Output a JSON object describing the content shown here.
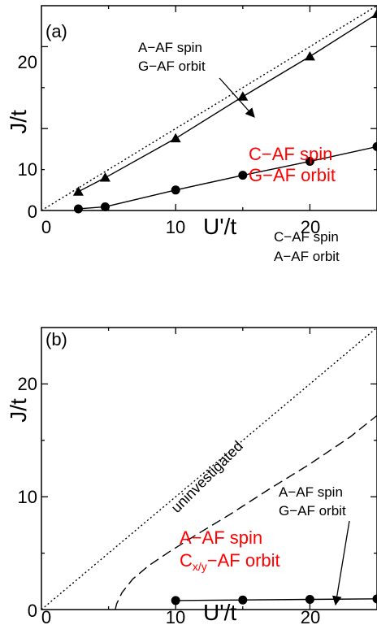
{
  "chart_data": [
    {
      "type": "scatter",
      "panel_label": "(a)",
      "xlabel": "U'/t",
      "ylabel": "J/t",
      "xlim": [
        0,
        25
      ],
      "ylim": [
        0,
        25
      ],
      "x_ticks": [
        0,
        10,
        20
      ],
      "y_ticks": [
        0,
        10,
        20
      ],
      "series": [
        {
          "marker": "triangle",
          "style": "solid",
          "color": "#000000",
          "points": [
            [
              2.75,
              2.3
            ],
            [
              4.75,
              4.0
            ],
            [
              10,
              8.8
            ],
            [
              15,
              13.9
            ],
            [
              20,
              18.8
            ],
            [
              25,
              24.0
            ]
          ]
        },
        {
          "marker": "circle",
          "style": "solid",
          "color": "#000000",
          "points": [
            [
              2.75,
              0.2
            ],
            [
              4.75,
              0.45
            ],
            [
              10,
              2.5
            ],
            [
              15,
              4.3
            ],
            [
              20,
              6.0
            ],
            [
              25,
              7.8
            ]
          ]
        },
        {
          "marker": "none",
          "style": "dotted",
          "color": "#000000",
          "points": [
            [
              0,
              0
            ],
            [
              25,
              25
            ]
          ]
        }
      ],
      "annotations": [
        {
          "lines": [
            "A−AF spin",
            "G−AF orbit"
          ],
          "color": "#000000",
          "arrow_to": [
            16,
            14.5
          ]
        },
        {
          "lines": [
            "C−AF spin",
            "G−AF orbit"
          ],
          "color": "#ff0000"
        },
        {
          "lines": [
            "C−AF spin",
            "A−AF orbit"
          ],
          "color": "#000000"
        }
      ]
    },
    {
      "type": "scatter",
      "panel_label": "(b)",
      "xlabel": "U'/t",
      "ylabel": "J/t",
      "xlim": [
        0,
        25
      ],
      "ylim": [
        0,
        25
      ],
      "x_ticks": [
        0,
        10,
        20
      ],
      "y_ticks": [
        0,
        10,
        20
      ],
      "series": [
        {
          "marker": "circle",
          "style": "solid",
          "color": "#000000",
          "points": [
            [
              10,
              0.8
            ],
            [
              15,
              0.85
            ],
            [
              20,
              0.9
            ],
            [
              25,
              0.95
            ]
          ]
        },
        {
          "marker": "none",
          "style": "dotted",
          "color": "#000000",
          "points": [
            [
              0,
              0
            ],
            [
              25,
              25
            ]
          ]
        },
        {
          "marker": "none",
          "style": "dashed",
          "color": "#000000",
          "points": [
            [
              5.5,
              0
            ],
            [
              5.6,
              0.5
            ],
            [
              6.0,
              1.5
            ],
            [
              6.8,
              2.7
            ],
            [
              8.0,
              3.9
            ],
            [
              9.5,
              5.1
            ],
            [
              11.5,
              6.6
            ],
            [
              14.0,
              8.4
            ],
            [
              17.0,
              10.7
            ],
            [
              20.0,
              12.9
            ],
            [
              23.0,
              15.3
            ],
            [
              25.0,
              17.2
            ]
          ]
        }
      ],
      "annotations": [
        {
          "lines": [
            "uninvestigated"
          ],
          "color": "#000000",
          "rotate": -45
        },
        {
          "lines": [
            "A−AF spin",
            "G−AF orbit"
          ],
          "color": "#000000",
          "arrow_to": [
            22,
            0.9
          ]
        },
        {
          "lines": [
            "A−AF spin"
          ],
          "color": "#ff0000"
        }
      ],
      "special_annotation": {
        "prefix": "C",
        "subscript": "x/y",
        "suffix": "−AF orbit",
        "color": "#ff0000"
      }
    }
  ]
}
